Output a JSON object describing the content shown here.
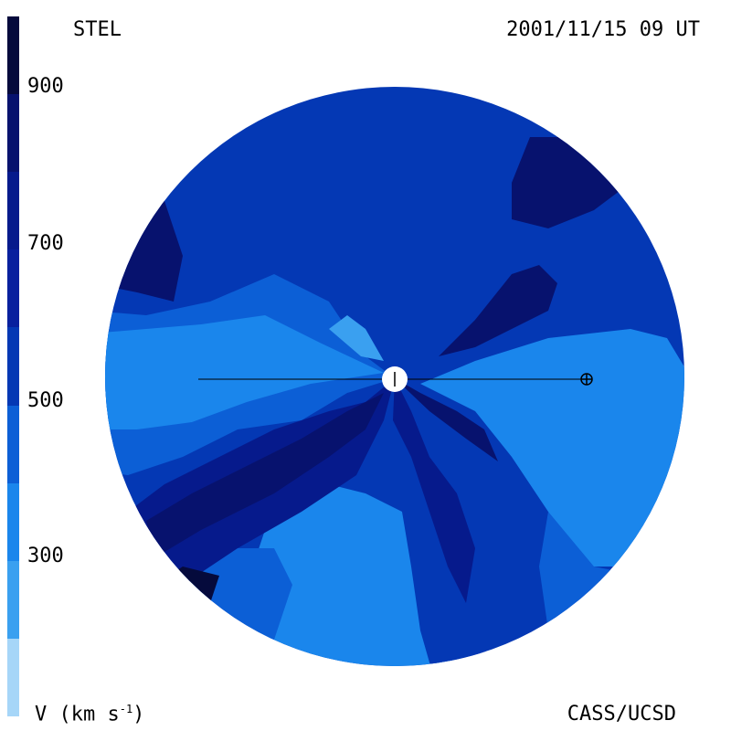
{
  "header": {
    "left_label": "STEL",
    "right_label": "2001/11/15 09 UT"
  },
  "footer": {
    "credit": "CASS/UCSD",
    "unit_prefix": "V (km s",
    "unit_exp": "-1",
    "unit_suffix": ")"
  },
  "colorbar": {
    "ticks": [
      "900",
      "700",
      "500",
      "300"
    ],
    "bands": [
      {
        "from": 900,
        "to": 1000,
        "color": "#050a3c"
      },
      {
        "from": 800,
        "to": 900,
        "color": "#07126e"
      },
      {
        "from": 700,
        "to": 800,
        "color": "#061a8c"
      },
      {
        "from": 600,
        "to": 700,
        "color": "#08209e"
      },
      {
        "from": 500,
        "to": 600,
        "color": "#0438b4"
      },
      {
        "from": 400,
        "to": 500,
        "color": "#0c5fd6"
      },
      {
        "from": 300,
        "to": 400,
        "color": "#1a86ec"
      },
      {
        "from": 200,
        "to": 300,
        "color": "#3aa0f0"
      },
      {
        "from": 100,
        "to": 200,
        "color": "#a6d6f8"
      }
    ]
  },
  "map": {
    "symbols": [
      "sun",
      "earth"
    ],
    "colors": {
      "v_900": "#050a3c",
      "v_800": "#07126e",
      "v_700": "#061a8c",
      "v_600": "#0438b4",
      "v_500": "#0c5fd6",
      "v_400": "#1a86ec",
      "v_300": "#3aa0f0"
    }
  }
}
